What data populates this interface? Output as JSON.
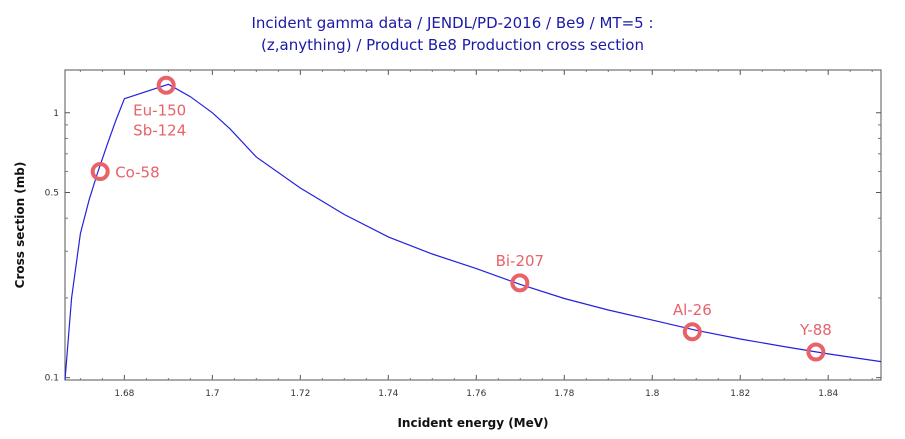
{
  "chart_data": {
    "type": "line",
    "title_line1": "Incident gamma data / JENDL/PD-2016 / Be9 / MT=5 :",
    "title_line2": "(z,anything) / Product Be8 Production cross section",
    "xlabel": "Incident energy (MeV)",
    "ylabel": "Cross section (mb)",
    "xlim": [
      1.6665,
      1.852
    ],
    "ylim": [
      0.098,
      1.45
    ],
    "yscale": "log",
    "grid": false,
    "line_color": "#2222dd",
    "marker_color": "#e8626a",
    "x_ticks": [
      "1.68",
      "1.7",
      "1.72",
      "1.74",
      "1.76",
      "1.78",
      "1.8",
      "1.82",
      "1.84"
    ],
    "y_ticks": [
      "0.1",
      "0.5",
      "1"
    ],
    "series": [
      {
        "x": [
          1.6665,
          1.668,
          1.67,
          1.672,
          1.674,
          1.676,
          1.678,
          1.68,
          1.69,
          1.695,
          1.7,
          1.704,
          1.71,
          1.72,
          1.73,
          1.74,
          1.75,
          1.76,
          1.77,
          1.78,
          1.79,
          1.8,
          1.81,
          1.82,
          1.83,
          1.84,
          1.852
        ],
        "y": [
          0.098,
          0.2,
          0.35,
          0.47,
          0.6,
          0.75,
          0.93,
          1.13,
          1.28,
          1.15,
          1.0,
          0.87,
          0.68,
          0.52,
          0.413,
          0.34,
          0.293,
          0.258,
          0.225,
          0.199,
          0.18,
          0.165,
          0.151,
          0.14,
          0.131,
          0.123,
          0.115
        ]
      }
    ],
    "annotations": [
      {
        "labels": [
          "Co-58"
        ],
        "x": 1.6745,
        "y": 0.6
      },
      {
        "labels": [
          "Eu-150",
          "Sb-124"
        ],
        "x": 1.6895,
        "y": 1.27
      },
      {
        "labels": [
          "Bi-207"
        ],
        "x": 1.7699,
        "y": 0.228
      },
      {
        "labels": [
          "Al-26"
        ],
        "x": 1.8091,
        "y": 0.149
      },
      {
        "labels": [
          "Y-88"
        ],
        "x": 1.8372,
        "y": 0.125
      }
    ]
  }
}
